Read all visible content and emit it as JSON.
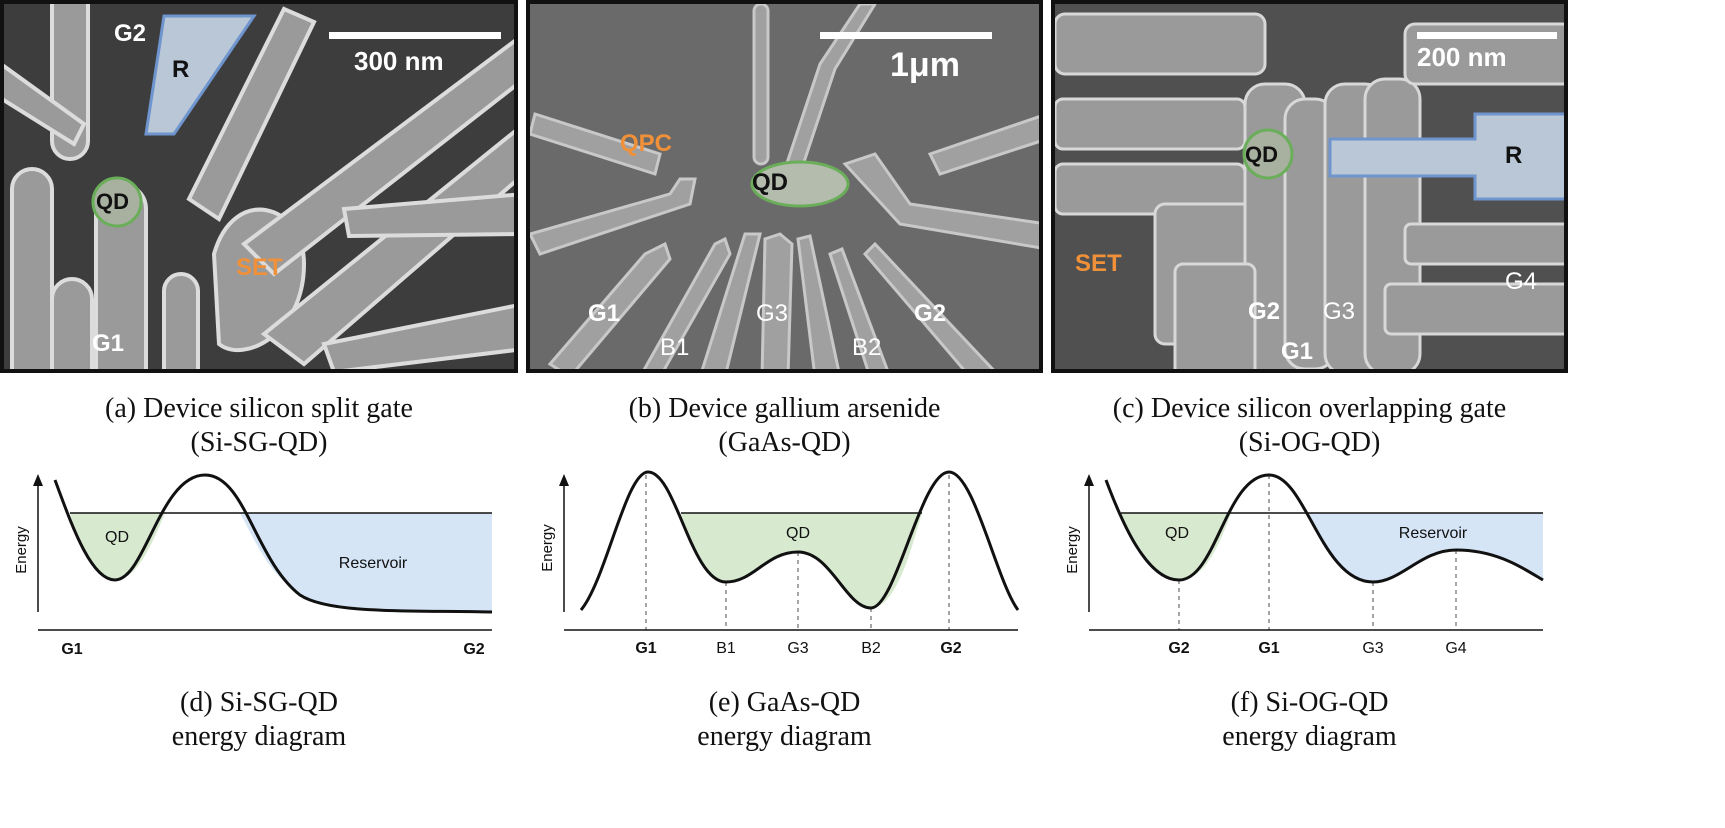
{
  "colors": {
    "highlight_orange": "#f0913a",
    "qd_green": "#d7ead0",
    "reservoir_blue": "#d6e5f6",
    "qd_outline": "#6aae5a",
    "r_outline": "#6f95cf"
  },
  "sem_a": {
    "scalebar": "300 nm",
    "labels": {
      "g1": "G1",
      "g2": "G2",
      "r": "R",
      "qd": "QD",
      "set": "SET"
    }
  },
  "sem_b": {
    "scalebar": "1μm",
    "labels": {
      "qpc": "QPC",
      "qd": "QD",
      "g1": "G1",
      "b1": "B1",
      "g3": "G3",
      "b2": "B2",
      "g2": "G2"
    }
  },
  "sem_c": {
    "scalebar": "200 nm",
    "labels": {
      "qd": "QD",
      "r": "R",
      "set": "SET",
      "g2": "G2",
      "g1": "G1",
      "g3": "G3",
      "g4": "G4"
    }
  },
  "captions": {
    "a": {
      "line1": "(a) Device silicon split gate",
      "line2": "(Si-SG-QD)"
    },
    "b": {
      "line1": "(b) Device gallium arsenide",
      "line2": "(GaAs-QD)"
    },
    "c": {
      "line1": "(c) Device silicon overlapping gate",
      "line2": "(Si-OG-QD)"
    },
    "d": {
      "line1": "(d) Si-SG-QD",
      "line2": "energy diagram"
    },
    "e": {
      "line1": "(e) GaAs-QD",
      "line2": "energy diagram"
    },
    "f": {
      "line1": "(f) Si-OG-QD",
      "line2": "energy diagram"
    }
  },
  "diagram_d": {
    "ylabel": "Energy",
    "qd": "QD",
    "reservoir": "Reservoir",
    "ticks": [
      "G1",
      "G2"
    ]
  },
  "diagram_e": {
    "ylabel": "Energy",
    "qd": "QD",
    "ticks": [
      "G1",
      "B1",
      "G3",
      "B2",
      "G2"
    ]
  },
  "diagram_f": {
    "ylabel": "Energy",
    "qd": "QD",
    "reservoir": "Reservoir",
    "ticks": [
      "G2",
      "G1",
      "G3",
      "G4"
    ]
  }
}
